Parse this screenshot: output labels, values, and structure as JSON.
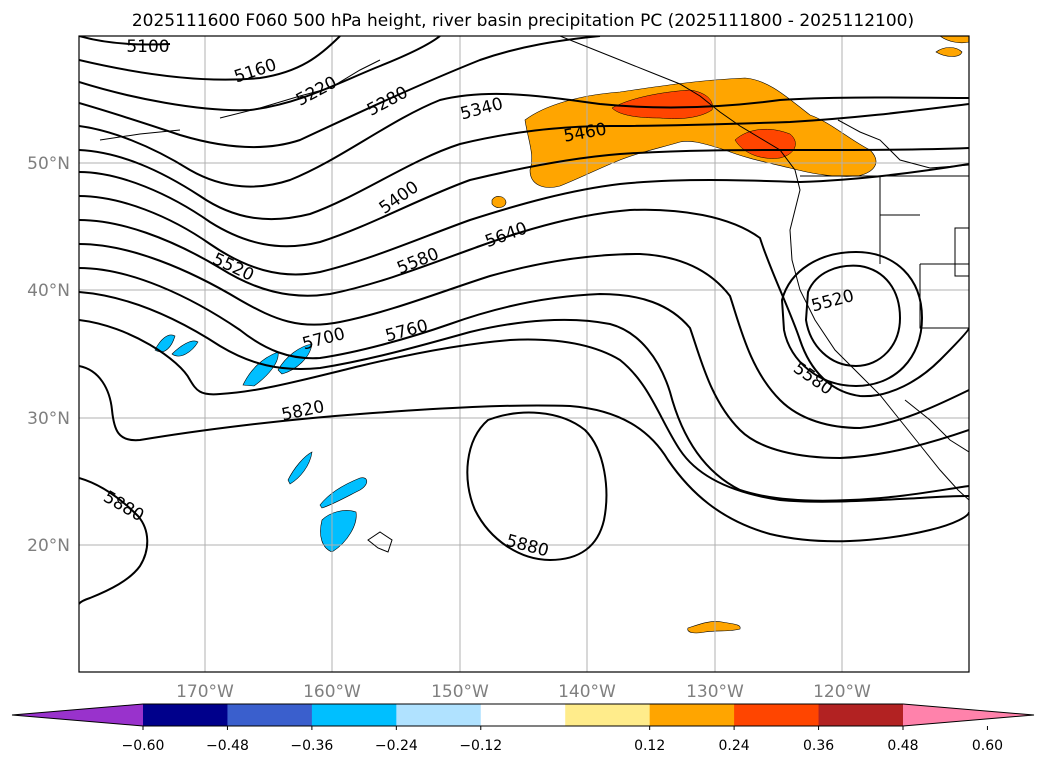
{
  "title": "2025111600 F060 500 hPa height, river basin precipitation PC (2025111800 - 2025112100)",
  "lat_labels": [
    "50°N",
    "40°N",
    "30°N",
    "20°N"
  ],
  "lon_labels": [
    "170°W",
    "160°W",
    "150°W",
    "140°W",
    "130°W",
    "120°W"
  ],
  "contour_labels": [
    "5100",
    "5160",
    "5220",
    "5280",
    "5340",
    "5460",
    "5400",
    "5640",
    "5580",
    "5520",
    "5700",
    "5760",
    "5820",
    "5880",
    "5880",
    "5520",
    "5580"
  ],
  "colorbar": {
    "ticks": [
      "−0.60",
      "−0.48",
      "−0.36",
      "−0.24",
      "−0.12",
      "0.12",
      "0.24",
      "0.36",
      "0.48",
      "0.60"
    ],
    "colors": [
      "#9932cc",
      "#00008b",
      "#3a5fcd",
      "#00bfff",
      "#b0e2ff",
      "#ffffff",
      "#ffec8b",
      "#ffa500",
      "#ff4500",
      "#b22222",
      "#ff82ab"
    ]
  }
}
